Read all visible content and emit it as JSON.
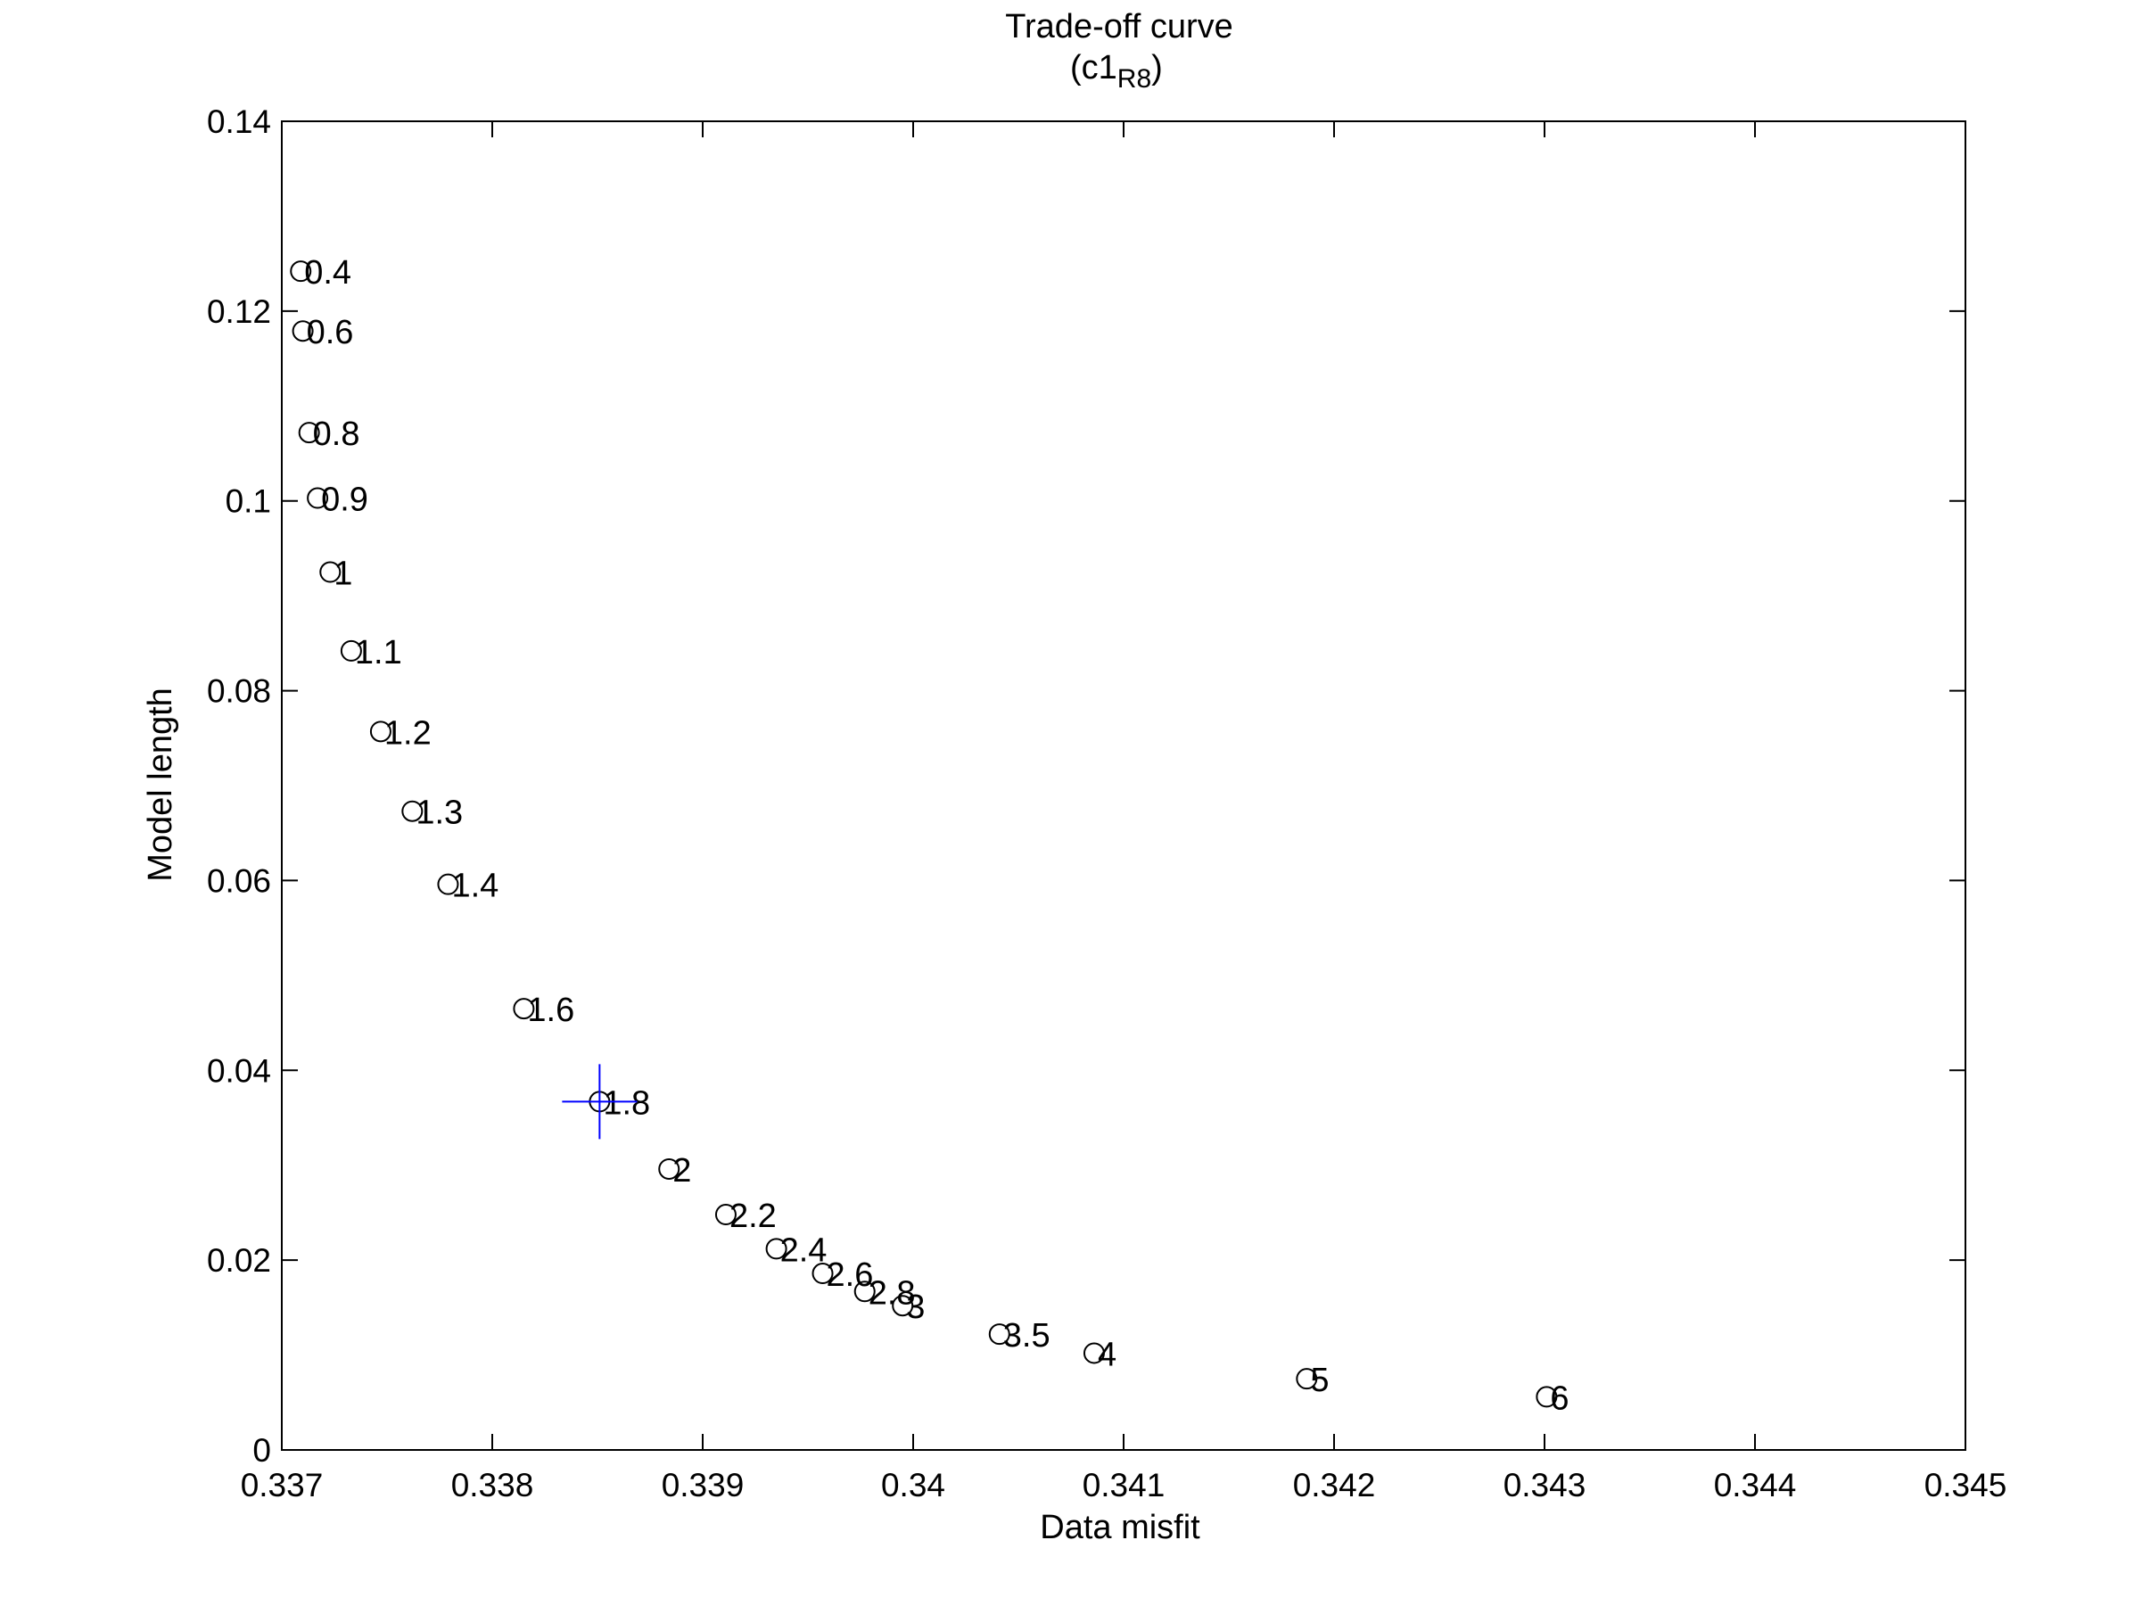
{
  "chart_data": {
    "type": "scatter",
    "title": "Trade-off curve",
    "subtitle_prefix": "(c1",
    "subtitle_subscript": "R8",
    "subtitle_suffix": ")",
    "xlabel": "Data misfit",
    "ylabel": "Model length",
    "xlim": [
      0.337,
      0.345
    ],
    "ylim": [
      0,
      0.14
    ],
    "xticks": [
      "0.337",
      "0.338",
      "0.339",
      "0.34",
      "0.341",
      "0.342",
      "0.343",
      "0.344",
      "0.345"
    ],
    "yticks": [
      "0",
      "0.02",
      "0.04",
      "0.06",
      "0.08",
      "0.1",
      "0.12",
      "0.14"
    ],
    "grid": false,
    "marker": "circle",
    "marker_color": "#000000",
    "highlight_color": "#0000ff",
    "points": [
      {
        "label": "0.4",
        "x": 0.33709,
        "y": 0.1242
      },
      {
        "label": "0.6",
        "x": 0.3371,
        "y": 0.1179
      },
      {
        "label": "0.8",
        "x": 0.33713,
        "y": 0.1072
      },
      {
        "label": "0.9",
        "x": 0.33717,
        "y": 0.1003
      },
      {
        "label": "1",
        "x": 0.33723,
        "y": 0.0925
      },
      {
        "label": "1.1",
        "x": 0.33733,
        "y": 0.0842
      },
      {
        "label": "1.2",
        "x": 0.33747,
        "y": 0.0757
      },
      {
        "label": "1.3",
        "x": 0.33762,
        "y": 0.0673
      },
      {
        "label": "1.4",
        "x": 0.33779,
        "y": 0.0596
      },
      {
        "label": "1.6",
        "x": 0.33815,
        "y": 0.0465
      },
      {
        "label": "1.8",
        "x": 0.33851,
        "y": 0.0367
      },
      {
        "label": "2",
        "x": 0.33884,
        "y": 0.0296
      },
      {
        "label": "2.2",
        "x": 0.33911,
        "y": 0.0248
      },
      {
        "label": "2.4",
        "x": 0.33935,
        "y": 0.0212
      },
      {
        "label": "2.6",
        "x": 0.33957,
        "y": 0.0186
      },
      {
        "label": "2.8",
        "x": 0.33977,
        "y": 0.0167
      },
      {
        "label": "3",
        "x": 0.33995,
        "y": 0.0152
      },
      {
        "label": "3.5",
        "x": 0.34041,
        "y": 0.0122
      },
      {
        "label": "4",
        "x": 0.34086,
        "y": 0.0102
      },
      {
        "label": "5",
        "x": 0.34187,
        "y": 0.0075
      },
      {
        "label": "6",
        "x": 0.34301,
        "y": 0.0056
      }
    ],
    "highlight": {
      "label": "1.8",
      "x": 0.33851,
      "y": 0.0367,
      "marker": "cross"
    }
  }
}
